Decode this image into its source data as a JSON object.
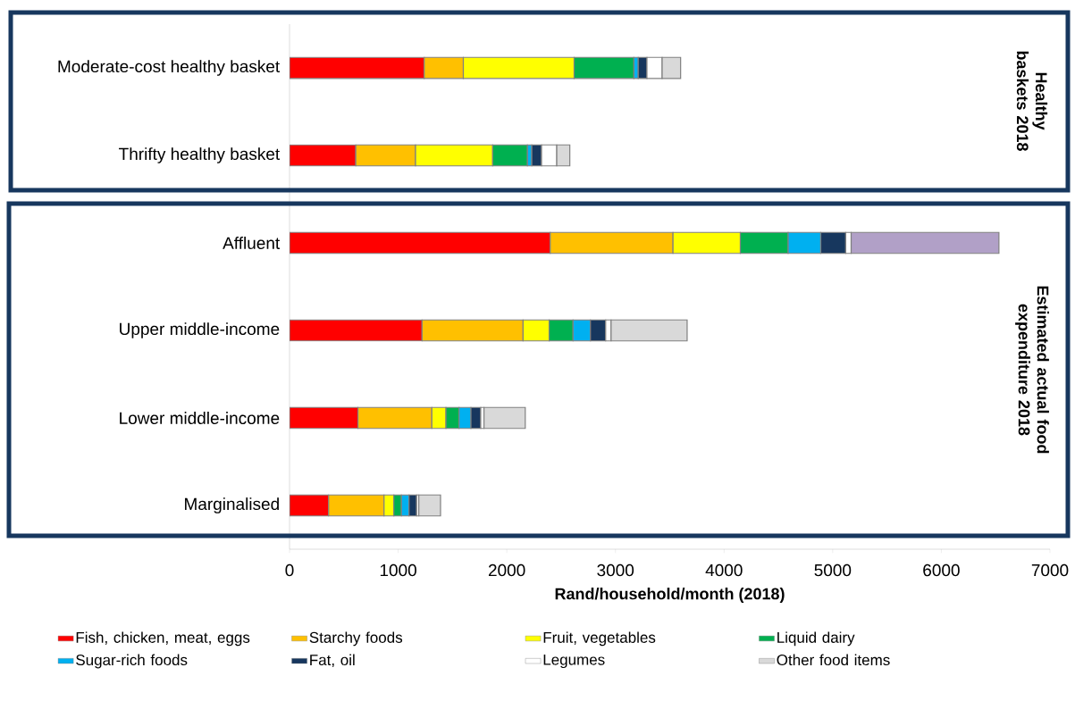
{
  "chart_data": {
    "type": "bar",
    "orientation": "horizontal",
    "stacked": true,
    "xlabel": "Rand/household/month (2018)",
    "categories": [
      "Moderate-cost healthy basket",
      "Thrifty healthy basket",
      "Affluent",
      "Upper middle-income",
      "Lower middle-income",
      "Marginalised"
    ],
    "xlim": [
      0,
      7000
    ],
    "xticks": [
      0,
      1000,
      2000,
      3000,
      4000,
      5000,
      6000,
      7000
    ],
    "legend": "bottom",
    "grid": false,
    "annotations": [
      "Healthy baskets 2018",
      "Estimated actual food expenditure 2018"
    ],
    "series": [
      {
        "name": "Fish, chicken, meat, eggs",
        "color": "#ff0000",
        "values": [
          1240,
          610,
          2400,
          1220,
          630,
          360
        ]
      },
      {
        "name": "Starchy foods",
        "color": "#ffc000",
        "values": [
          360,
          550,
          1130,
          930,
          680,
          510
        ]
      },
      {
        "name": "Fruit, vegetables",
        "color": "#ffff00",
        "values": [
          1020,
          710,
          620,
          240,
          130,
          90
        ]
      },
      {
        "name": "Liquid dairy",
        "color": "#00b050",
        "values": [
          550,
          320,
          440,
          220,
          120,
          70
        ]
      },
      {
        "name": "Sugar-rich foods",
        "color": "#00b0f0",
        "values": [
          40,
          40,
          300,
          160,
          110,
          70
        ]
      },
      {
        "name": "Fat, oil",
        "color": "#17375e",
        "values": [
          80,
          90,
          230,
          140,
          90,
          70
        ]
      },
      {
        "name": "Legumes",
        "color": "#ffffff",
        "values": [
          140,
          140,
          50,
          50,
          30,
          20
        ]
      },
      {
        "name": "Other food items",
        "color": "#d9d9d9",
        "colors": [
          "#d9d9d9",
          "#d9d9d9",
          "#b1a0c7",
          "#d9d9d9",
          "#d9d9d9",
          "#d9d9d9"
        ],
        "values": [
          170,
          120,
          1360,
          700,
          380,
          200
        ]
      }
    ]
  }
}
